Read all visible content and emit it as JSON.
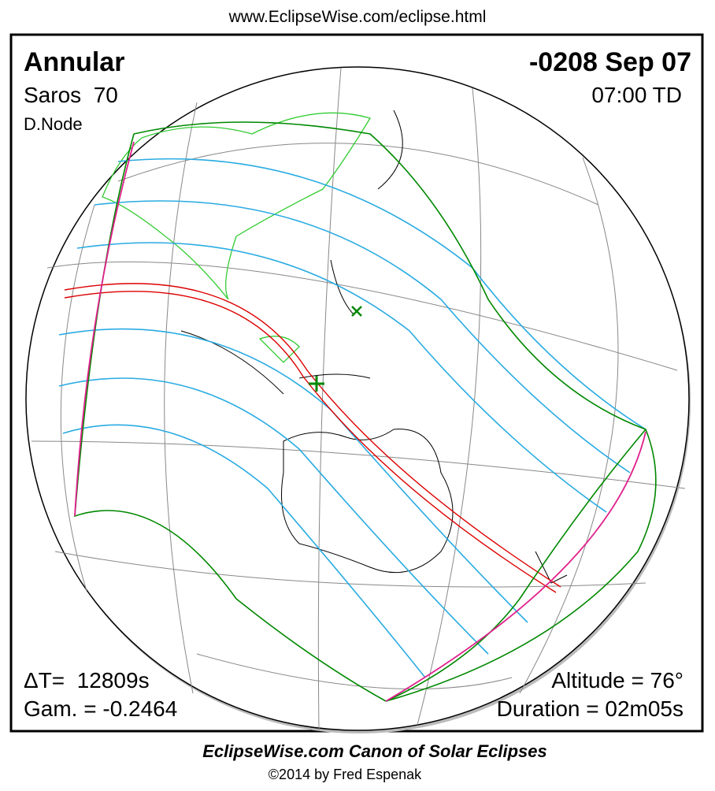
{
  "header": {
    "url": "www.EclipseWise.com/eclipse.html"
  },
  "map": {
    "eclipse_type": "Annular",
    "saros": "Saros  70",
    "node": "D.Node",
    "date": "-0208 Sep 07",
    "time": "07:00 TD",
    "delta_t": "ΔT=  12809s",
    "gamma": "Gam. = -0.2464",
    "altitude": "Altitude = 76°",
    "duration": "Duration = 02m05s"
  },
  "footer": {
    "title": "EclipseWise.com Canon of Solar Eclipses",
    "copyright": "©2014 by Fred Espenak"
  }
}
